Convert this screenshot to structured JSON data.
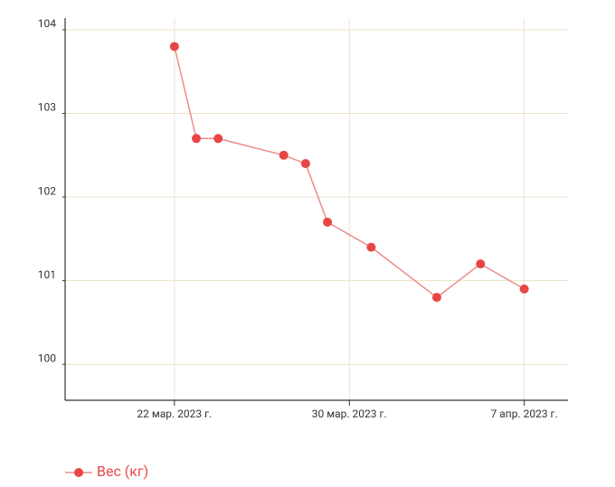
{
  "chart_data": {
    "type": "line",
    "x": [
      "2023-03-22",
      "2023-03-23",
      "2023-03-24",
      "2023-03-27",
      "2023-03-28",
      "2023-03-29",
      "2023-03-31",
      "2023-04-03",
      "2023-04-05",
      "2023-04-07"
    ],
    "series": [
      {
        "name": "Вес (кг)",
        "color": "#e84545",
        "line_color": "#ec8c8c",
        "values": [
          103.8,
          102.7,
          102.7,
          102.5,
          102.4,
          101.7,
          101.4,
          100.8,
          101.2,
          100.9
        ]
      }
    ],
    "xlim": [
      "2023-03-17",
      "2023-04-09"
    ],
    "xticks": [
      {
        "value": "2023-03-22",
        "label": "22 мар. 2023 г."
      },
      {
        "value": "2023-03-30",
        "label": "30 мар. 2023 г."
      },
      {
        "value": "2023-04-07",
        "label": "7 апр. 2023 г."
      }
    ],
    "ylim": [
      99.57,
      104.14
    ],
    "yticks": [
      100,
      101,
      102,
      103,
      104
    ],
    "grid": true,
    "grid_color": "#ece3c6",
    "legend": "bottom-left"
  }
}
